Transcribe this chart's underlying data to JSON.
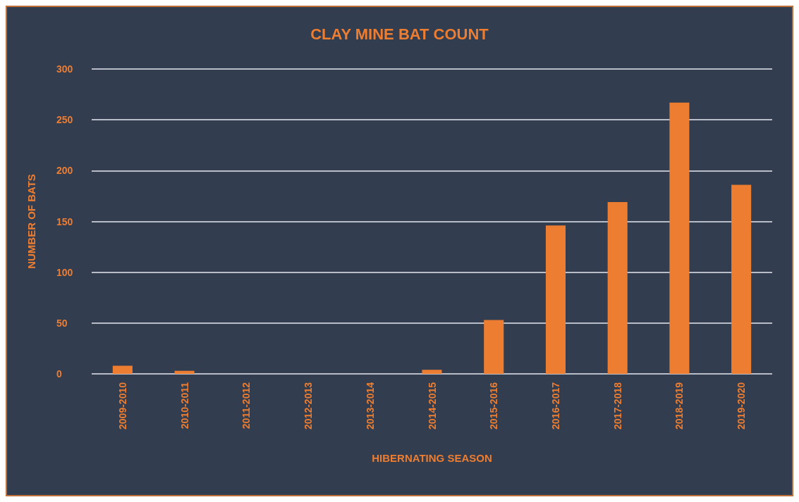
{
  "chart_data": {
    "type": "bar",
    "title": "CLAY MINE BAT COUNT",
    "xlabel": "HIBERNATING SEASON",
    "ylabel": "NUMBER OF BATS",
    "categories": [
      "2009-2010",
      "2010-2011",
      "2011-2012",
      "2012-2013",
      "2013-2014",
      "2014-2015",
      "2015-2016",
      "2016-2017",
      "2017-2018",
      "2018-2019",
      "2019-2020"
    ],
    "values": [
      8,
      3,
      0,
      0,
      0,
      4,
      53,
      146,
      169,
      267,
      186
    ],
    "color": "#ed7d31",
    "ylim": [
      0,
      300
    ],
    "yticks": [
      0,
      50,
      100,
      150,
      200,
      250,
      300
    ],
    "grid": "y"
  }
}
